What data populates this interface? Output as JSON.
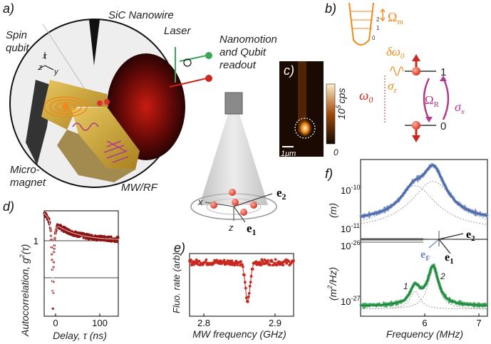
{
  "panels": {
    "a": {
      "label": "a)",
      "labels": {
        "sic": "SiC Nanowire",
        "spin": "Spin",
        "qubit": "qubit",
        "laser": "Laser",
        "nano1": "Nanomotion",
        "nano2": "and Qubit",
        "nano3": "readout",
        "micro1": "Micro-",
        "micro2": "magnet",
        "mw": "MW/RF",
        "ax_x": "x",
        "ax_z": "z",
        "ax_y": "y",
        "cone_x": "x",
        "cone_z": "z",
        "e2": "e",
        "e2_sub": "2",
        "e1": "e",
        "e1_sub": "1"
      }
    },
    "b": {
      "label": "b)",
      "levels": [
        "2",
        "1",
        "0"
      ],
      "omega_m": "Ω",
      "omega_m_sub": "m",
      "delta_omega": "δω",
      "delta_omega_sub": "0",
      "omega0": "ω",
      "omega0_sub": "0",
      "sigma_z": "σ",
      "sigma_z_sub": "z",
      "omega_r": "Ω",
      "omega_r_sub": "R",
      "sigma_x": "σ",
      "sigma_x_sub": "x",
      "state1": "1",
      "state0": "0"
    },
    "c": {
      "label": "c)",
      "scale": "1μm",
      "colorbar_label": "10",
      "colorbar_exp": "5",
      "colorbar_unit": "cps",
      "colorbar_min": "0"
    },
    "d": {
      "label": "d)",
      "ylabel": "Autocorrelation, g",
      "ylabel_sup": "2",
      "ylabel_tail": "(τ)",
      "xlabel": "Delay, τ (ns)",
      "yticks": [
        "1"
      ],
      "xticks": [
        "0",
        "100"
      ]
    },
    "e": {
      "label": "e)",
      "ylabel": "Fluo. rate (arb)",
      "xlabel": "MW frequency (GHz)",
      "xticks": [
        "2.8",
        "2.9"
      ]
    },
    "f": {
      "label": "f)",
      "ylabel_top": "(m",
      "ylabel_top_tail": ")",
      "ylabel_bottom": "(m",
      "ylabel_bottom_sup": "2",
      "ylabel_bottom_tail": "/Hz)",
      "xlabel": "Frequency (MHz)",
      "xticks": [
        "6",
        "7"
      ],
      "ytick_top_a": "10",
      "ytick_top_a_exp": "-10",
      "ytick_top_b": "10",
      "ytick_top_b_exp": "-11",
      "ytick_bot_a": "10",
      "ytick_bot_a_exp": "-26",
      "ytick_bot_b": "10",
      "ytick_bot_b_exp": "-27",
      "peak1": "1",
      "peak2": "2",
      "e2": "e",
      "e2_sub": "2",
      "eF": "e",
      "eF_sub": "F",
      "e1": "e",
      "e1_sub": "1"
    }
  },
  "colors": {
    "orange": "#f08a1c",
    "magenta": "#b03a8c",
    "red": "#c8281e",
    "blue": "#6d8ac6",
    "green": "#3aa65a",
    "darkred": "#8c1414",
    "gold": "#c9a43a"
  },
  "chart_data": [
    {
      "panel": "d",
      "type": "scatter",
      "xlabel": "Delay, τ (ns)",
      "ylabel": "Autocorrelation, g2(τ)",
      "xlim": [
        -20,
        150
      ],
      "ylim": [
        0.3,
        1.3
      ],
      "dip_at": 0,
      "dip_value": 0.38,
      "baseline_left": 1.28,
      "baseline_right": 1.02
    },
    {
      "panel": "e",
      "type": "scatter",
      "xlabel": "MW frequency (GHz)",
      "ylabel": "Fluo. rate (arb)",
      "xlim": [
        2.76,
        2.93
      ],
      "dip_center": 2.855,
      "dip_width": 0.004
    },
    {
      "panel": "f",
      "type": "line",
      "xlabel": "Frequency (MHz)",
      "xlim": [
        5.1,
        7.2
      ],
      "peaks": [
        6.0,
        6.3
      ]
    }
  ]
}
